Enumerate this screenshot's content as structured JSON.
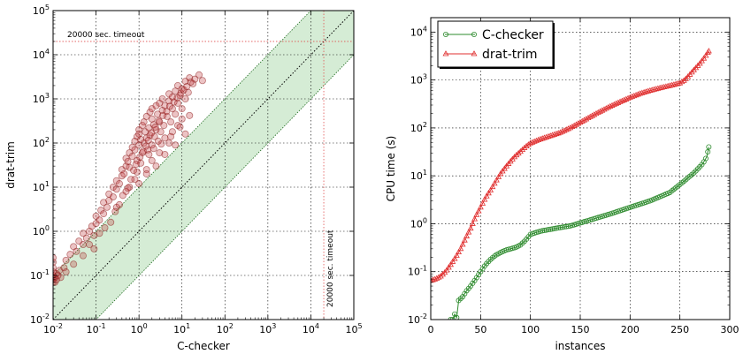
{
  "chart_data": [
    {
      "type": "scatter",
      "xlabel": "C-checker",
      "ylabel": "drat-trim",
      "xscale": "log",
      "yscale": "log",
      "xlim": [
        0.01,
        100000
      ],
      "ylim": [
        0.01,
        100000
      ],
      "grid": true,
      "x_tick_labels": [
        "10^-2",
        "10^-1",
        "10^0",
        "10^1",
        "10^2",
        "10^3",
        "10^4",
        "10^5"
      ],
      "y_tick_labels": [
        "10^-2",
        "10^-1",
        "10^0",
        "10^1",
        "10^2",
        "10^3",
        "10^4",
        "10^5"
      ],
      "annotations": {
        "h_timeout_label": "20000 sec. timeout",
        "v_timeout_label": "20000 sec. timeout",
        "timeout_value": 20000
      },
      "reference_lines": {
        "diagonal_factor": 1,
        "band_factors": [
          0.1,
          10
        ],
        "band_color": "#2ca02c"
      },
      "point_color": "#c0393b",
      "points": [
        [
          0.01,
          0.07
        ],
        [
          0.01,
          0.08
        ],
        [
          0.01,
          0.09
        ],
        [
          0.01,
          0.1
        ],
        [
          0.01,
          0.12
        ],
        [
          0.01,
          0.15
        ],
        [
          0.01,
          0.2
        ],
        [
          0.01,
          0.25
        ],
        [
          0.011,
          0.07
        ],
        [
          0.011,
          0.09
        ],
        [
          0.012,
          0.08
        ],
        [
          0.012,
          0.11
        ],
        [
          0.013,
          0.1
        ],
        [
          0.014,
          0.13
        ],
        [
          0.015,
          0.09
        ],
        [
          0.018,
          0.15
        ],
        [
          0.02,
          0.22
        ],
        [
          0.025,
          0.3
        ],
        [
          0.03,
          0.45
        ],
        [
          0.035,
          0.35
        ],
        [
          0.04,
          0.6
        ],
        [
          0.05,
          0.5
        ],
        [
          0.05,
          0.9
        ],
        [
          0.06,
          0.7
        ],
        [
          0.07,
          1.0
        ],
        [
          0.08,
          1.3
        ],
        [
          0.09,
          0.8
        ],
        [
          0.1,
          1.5
        ],
        [
          0.1,
          2.2
        ],
        [
          0.12,
          1.8
        ],
        [
          0.13,
          3.0
        ],
        [
          0.15,
          2.5
        ],
        [
          0.15,
          4.5
        ],
        [
          0.18,
          3.5
        ],
        [
          0.2,
          5.0
        ],
        [
          0.2,
          7.0
        ],
        [
          0.25,
          6.0
        ],
        [
          0.25,
          10.0
        ],
        [
          0.3,
          9.0
        ],
        [
          0.3,
          14.0
        ],
        [
          0.35,
          12.0
        ],
        [
          0.4,
          18.0
        ],
        [
          0.4,
          25.0
        ],
        [
          0.45,
          20.0
        ],
        [
          0.5,
          30.0
        ],
        [
          0.5,
          45.0
        ],
        [
          0.55,
          38.0
        ],
        [
          0.6,
          60.0
        ],
        [
          0.6,
          28.0
        ],
        [
          0.7,
          80.0
        ],
        [
          0.7,
          50.0
        ],
        [
          0.8,
          110.0
        ],
        [
          0.8,
          70.0
        ],
        [
          0.9,
          140.0
        ],
        [
          0.9,
          40.0
        ],
        [
          1.0,
          200.0
        ],
        [
          1.0,
          90.0
        ],
        [
          1.0,
          160.0
        ],
        [
          1.1,
          120.0
        ],
        [
          1.2,
          250.0
        ],
        [
          1.2,
          60.0
        ],
        [
          1.3,
          300.0
        ],
        [
          1.3,
          100.0
        ],
        [
          1.4,
          180.0
        ],
        [
          1.5,
          400.0
        ],
        [
          1.5,
          130.0
        ],
        [
          1.6,
          70.0
        ],
        [
          1.7,
          220.0
        ],
        [
          1.8,
          500.0
        ],
        [
          1.8,
          150.0
        ],
        [
          2.0,
          350.0
        ],
        [
          2.0,
          90.0
        ],
        [
          2.0,
          600.0
        ],
        [
          2.2,
          260.0
        ],
        [
          2.3,
          140.0
        ],
        [
          2.5,
          700.0
        ],
        [
          2.5,
          200.0
        ],
        [
          2.7,
          450.0
        ],
        [
          2.8,
          110.0
        ],
        [
          3.0,
          800.0
        ],
        [
          3.0,
          300.0
        ],
        [
          3.2,
          180.0
        ],
        [
          3.5,
          550.0
        ],
        [
          3.5,
          1000.0
        ],
        [
          3.8,
          250.0
        ],
        [
          4.0,
          700.0
        ],
        [
          4.0,
          130.0
        ],
        [
          4.5,
          400.0
        ],
        [
          5.0,
          900.0
        ],
        [
          5.0,
          1300.0
        ],
        [
          5.5,
          300.0
        ],
        [
          6.0,
          1100.0
        ],
        [
          6.0,
          600.0
        ],
        [
          7.0,
          1500.0
        ],
        [
          7.0,
          450.0
        ],
        [
          8.0,
          800.0
        ],
        [
          8.0,
          2000.0
        ],
        [
          9.0,
          1200.0
        ],
        [
          10.0,
          1700.0
        ],
        [
          10.0,
          600.0
        ],
        [
          12.0,
          2500.0
        ],
        [
          12.0,
          1000.0
        ],
        [
          14.0,
          1400.0
        ],
        [
          15.0,
          3000.0
        ],
        [
          18.0,
          2200.0
        ],
        [
          20.0,
          2800.0
        ],
        [
          25.0,
          3500.0
        ],
        [
          30.0,
          2600.0
        ],
        [
          0.3,
          3.5
        ],
        [
          0.5,
          8.0
        ],
        [
          0.8,
          15.0
        ],
        [
          1.0,
          12.0
        ],
        [
          1.5,
          25.0
        ],
        [
          2.0,
          40.0
        ],
        [
          3.0,
          60.0
        ],
        [
          5.0,
          100.0
        ],
        [
          6.0,
          180.0
        ],
        [
          8.0,
          250.0
        ],
        [
          10.0,
          350.0
        ],
        [
          1.5,
          20.0
        ],
        [
          2.5,
          30.0
        ],
        [
          4.0,
          55.0
        ],
        [
          7.0,
          90.0
        ],
        [
          12.0,
          160.0
        ],
        [
          0.6,
          10.0
        ],
        [
          0.9,
          22.0
        ],
        [
          1.1,
          35.0
        ],
        [
          1.7,
          55.0
        ],
        [
          2.2,
          75.0
        ],
        [
          3.3,
          95.0
        ],
        [
          5.5,
          140.0
        ],
        [
          9.0,
          230.0
        ],
        [
          15.0,
          420.0
        ],
        [
          0.02,
          0.12
        ],
        [
          0.03,
          0.18
        ],
        [
          0.05,
          0.28
        ],
        [
          0.07,
          0.5
        ],
        [
          0.09,
          0.4
        ],
        [
          0.12,
          0.9
        ],
        [
          0.16,
          1.2
        ],
        [
          0.22,
          1.6
        ],
        [
          0.28,
          2.8
        ],
        [
          0.35,
          4.0
        ],
        [
          0.42,
          6.5
        ],
        [
          0.55,
          9.5
        ],
        [
          0.65,
          15.0
        ],
        [
          0.75,
          24.0
        ],
        [
          0.85,
          33.0
        ],
        [
          1.05,
          48.0
        ],
        [
          1.25,
          65.0
        ],
        [
          1.45,
          85.0
        ],
        [
          1.65,
          115.0
        ],
        [
          1.95,
          170.0
        ],
        [
          2.4,
          230.0
        ],
        [
          2.9,
          320.0
        ],
        [
          3.6,
          420.0
        ],
        [
          4.4,
          520.0
        ],
        [
          5.2,
          680.0
        ],
        [
          6.5,
          850.0
        ],
        [
          7.8,
          1050.0
        ],
        [
          9.5,
          1350.0
        ],
        [
          11.0,
          1600.0
        ],
        [
          13.0,
          1900.0
        ],
        [
          16.0,
          2400.0
        ]
      ]
    },
    {
      "type": "line",
      "xlabel": "instances",
      "ylabel": "CPU time (s)",
      "yscale": "log",
      "xlim": [
        0,
        300
      ],
      "ylim": [
        0.01,
        20000
      ],
      "grid": true,
      "legend_position": "top-left",
      "x_tick_labels": [
        "0",
        "50",
        "100",
        "150",
        "200",
        "250",
        "300"
      ],
      "y_tick_labels": [
        "10^-2",
        "10^-1",
        "10^0",
        "10^1",
        "10^2",
        "10^3",
        "10^4"
      ],
      "series": [
        {
          "name": "C-checker",
          "color": "#2e8b2e",
          "marker": "circle",
          "start_instance": 20,
          "end_instance": 279,
          "knots": [
            [
              20,
              0.01
            ],
            [
              22,
              0.01
            ],
            [
              24,
              0.013
            ],
            [
              26,
              0.011
            ],
            [
              28,
              0.025
            ],
            [
              32,
              0.03
            ],
            [
              36,
              0.04
            ],
            [
              40,
              0.05
            ],
            [
              45,
              0.07
            ],
            [
              50,
              0.1
            ],
            [
              55,
              0.14
            ],
            [
              60,
              0.18
            ],
            [
              65,
              0.22
            ],
            [
              70,
              0.25
            ],
            [
              75,
              0.28
            ],
            [
              80,
              0.3
            ],
            [
              85,
              0.32
            ],
            [
              90,
              0.36
            ],
            [
              95,
              0.45
            ],
            [
              100,
              0.6
            ],
            [
              110,
              0.7
            ],
            [
              125,
              0.8
            ],
            [
              140,
              0.9
            ],
            [
              160,
              1.2
            ],
            [
              180,
              1.6
            ],
            [
              200,
              2.2
            ],
            [
              220,
              3.0
            ],
            [
              240,
              4.5
            ],
            [
              255,
              8.0
            ],
            [
              265,
              12.0
            ],
            [
              273,
              18.0
            ],
            [
              277,
              25.0
            ],
            [
              279,
              40.0
            ]
          ]
        },
        {
          "name": "drat-trim",
          "color": "#e03030",
          "marker": "triangle",
          "start_instance": 0,
          "end_instance": 279,
          "knots": [
            [
              0,
              0.065
            ],
            [
              5,
              0.07
            ],
            [
              10,
              0.08
            ],
            [
              15,
              0.1
            ],
            [
              20,
              0.14
            ],
            [
              25,
              0.2
            ],
            [
              30,
              0.3
            ],
            [
              35,
              0.5
            ],
            [
              40,
              0.8
            ],
            [
              45,
              1.4
            ],
            [
              50,
              2.2
            ],
            [
              55,
              3.5
            ],
            [
              60,
              5.0
            ],
            [
              65,
              7.5
            ],
            [
              70,
              11.0
            ],
            [
              75,
              15.0
            ],
            [
              80,
              20.0
            ],
            [
              85,
              26.0
            ],
            [
              90,
              32.0
            ],
            [
              95,
              40.0
            ],
            [
              100,
              48.0
            ],
            [
              110,
              58.0
            ],
            [
              120,
              68.0
            ],
            [
              130,
              80.0
            ],
            [
              140,
              100.0
            ],
            [
              150,
              130.0
            ],
            [
              160,
              170.0
            ],
            [
              170,
              220.0
            ],
            [
              180,
              280.0
            ],
            [
              190,
              350.0
            ],
            [
              200,
              430.0
            ],
            [
              210,
              520.0
            ],
            [
              220,
              600.0
            ],
            [
              230,
              680.0
            ],
            [
              240,
              760.0
            ],
            [
              250,
              860.0
            ],
            [
              255,
              1000.0
            ],
            [
              260,
              1300.0
            ],
            [
              265,
              1700.0
            ],
            [
              270,
              2200.0
            ],
            [
              275,
              3000.0
            ],
            [
              279,
              4000.0
            ]
          ]
        }
      ]
    }
  ]
}
